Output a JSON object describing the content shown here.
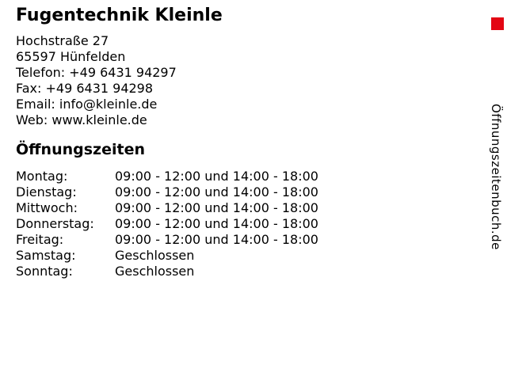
{
  "business": {
    "name": "Fugentechnik Kleinle",
    "address_line1": "Hochstraße 27",
    "address_line2": "65597 Hünfelden",
    "phone_line": "Telefon: +49 6431 94297",
    "fax_line": "Fax: +49 6431 94298",
    "email_line": "Email: info@kleinle.de",
    "web_line": "Web: www.kleinle.de"
  },
  "opening_hours": {
    "heading": "Öffnungszeiten",
    "rows": [
      {
        "day": "Montag:",
        "hours": "09:00 - 12:00 und 14:00 - 18:00"
      },
      {
        "day": "Dienstag:",
        "hours": "09:00 - 12:00 und 14:00 - 18:00"
      },
      {
        "day": "Mittwoch:",
        "hours": "09:00 - 12:00 und 14:00 - 18:00"
      },
      {
        "day": "Donnerstag:",
        "hours": "09:00 - 12:00 und 14:00 - 18:00"
      },
      {
        "day": "Freitag:",
        "hours": "09:00 - 12:00 und 14:00 - 18:00"
      },
      {
        "day": "Samstag:",
        "hours": "Geschlossen"
      },
      {
        "day": "Sonntag:",
        "hours": "Geschlossen"
      }
    ]
  },
  "brand": {
    "vertical_label": "Öffnungszeitenbuch.de",
    "logo_color": "#e30613"
  },
  "page": {
    "background_color": "#ffffff",
    "text_color": "#000000"
  }
}
